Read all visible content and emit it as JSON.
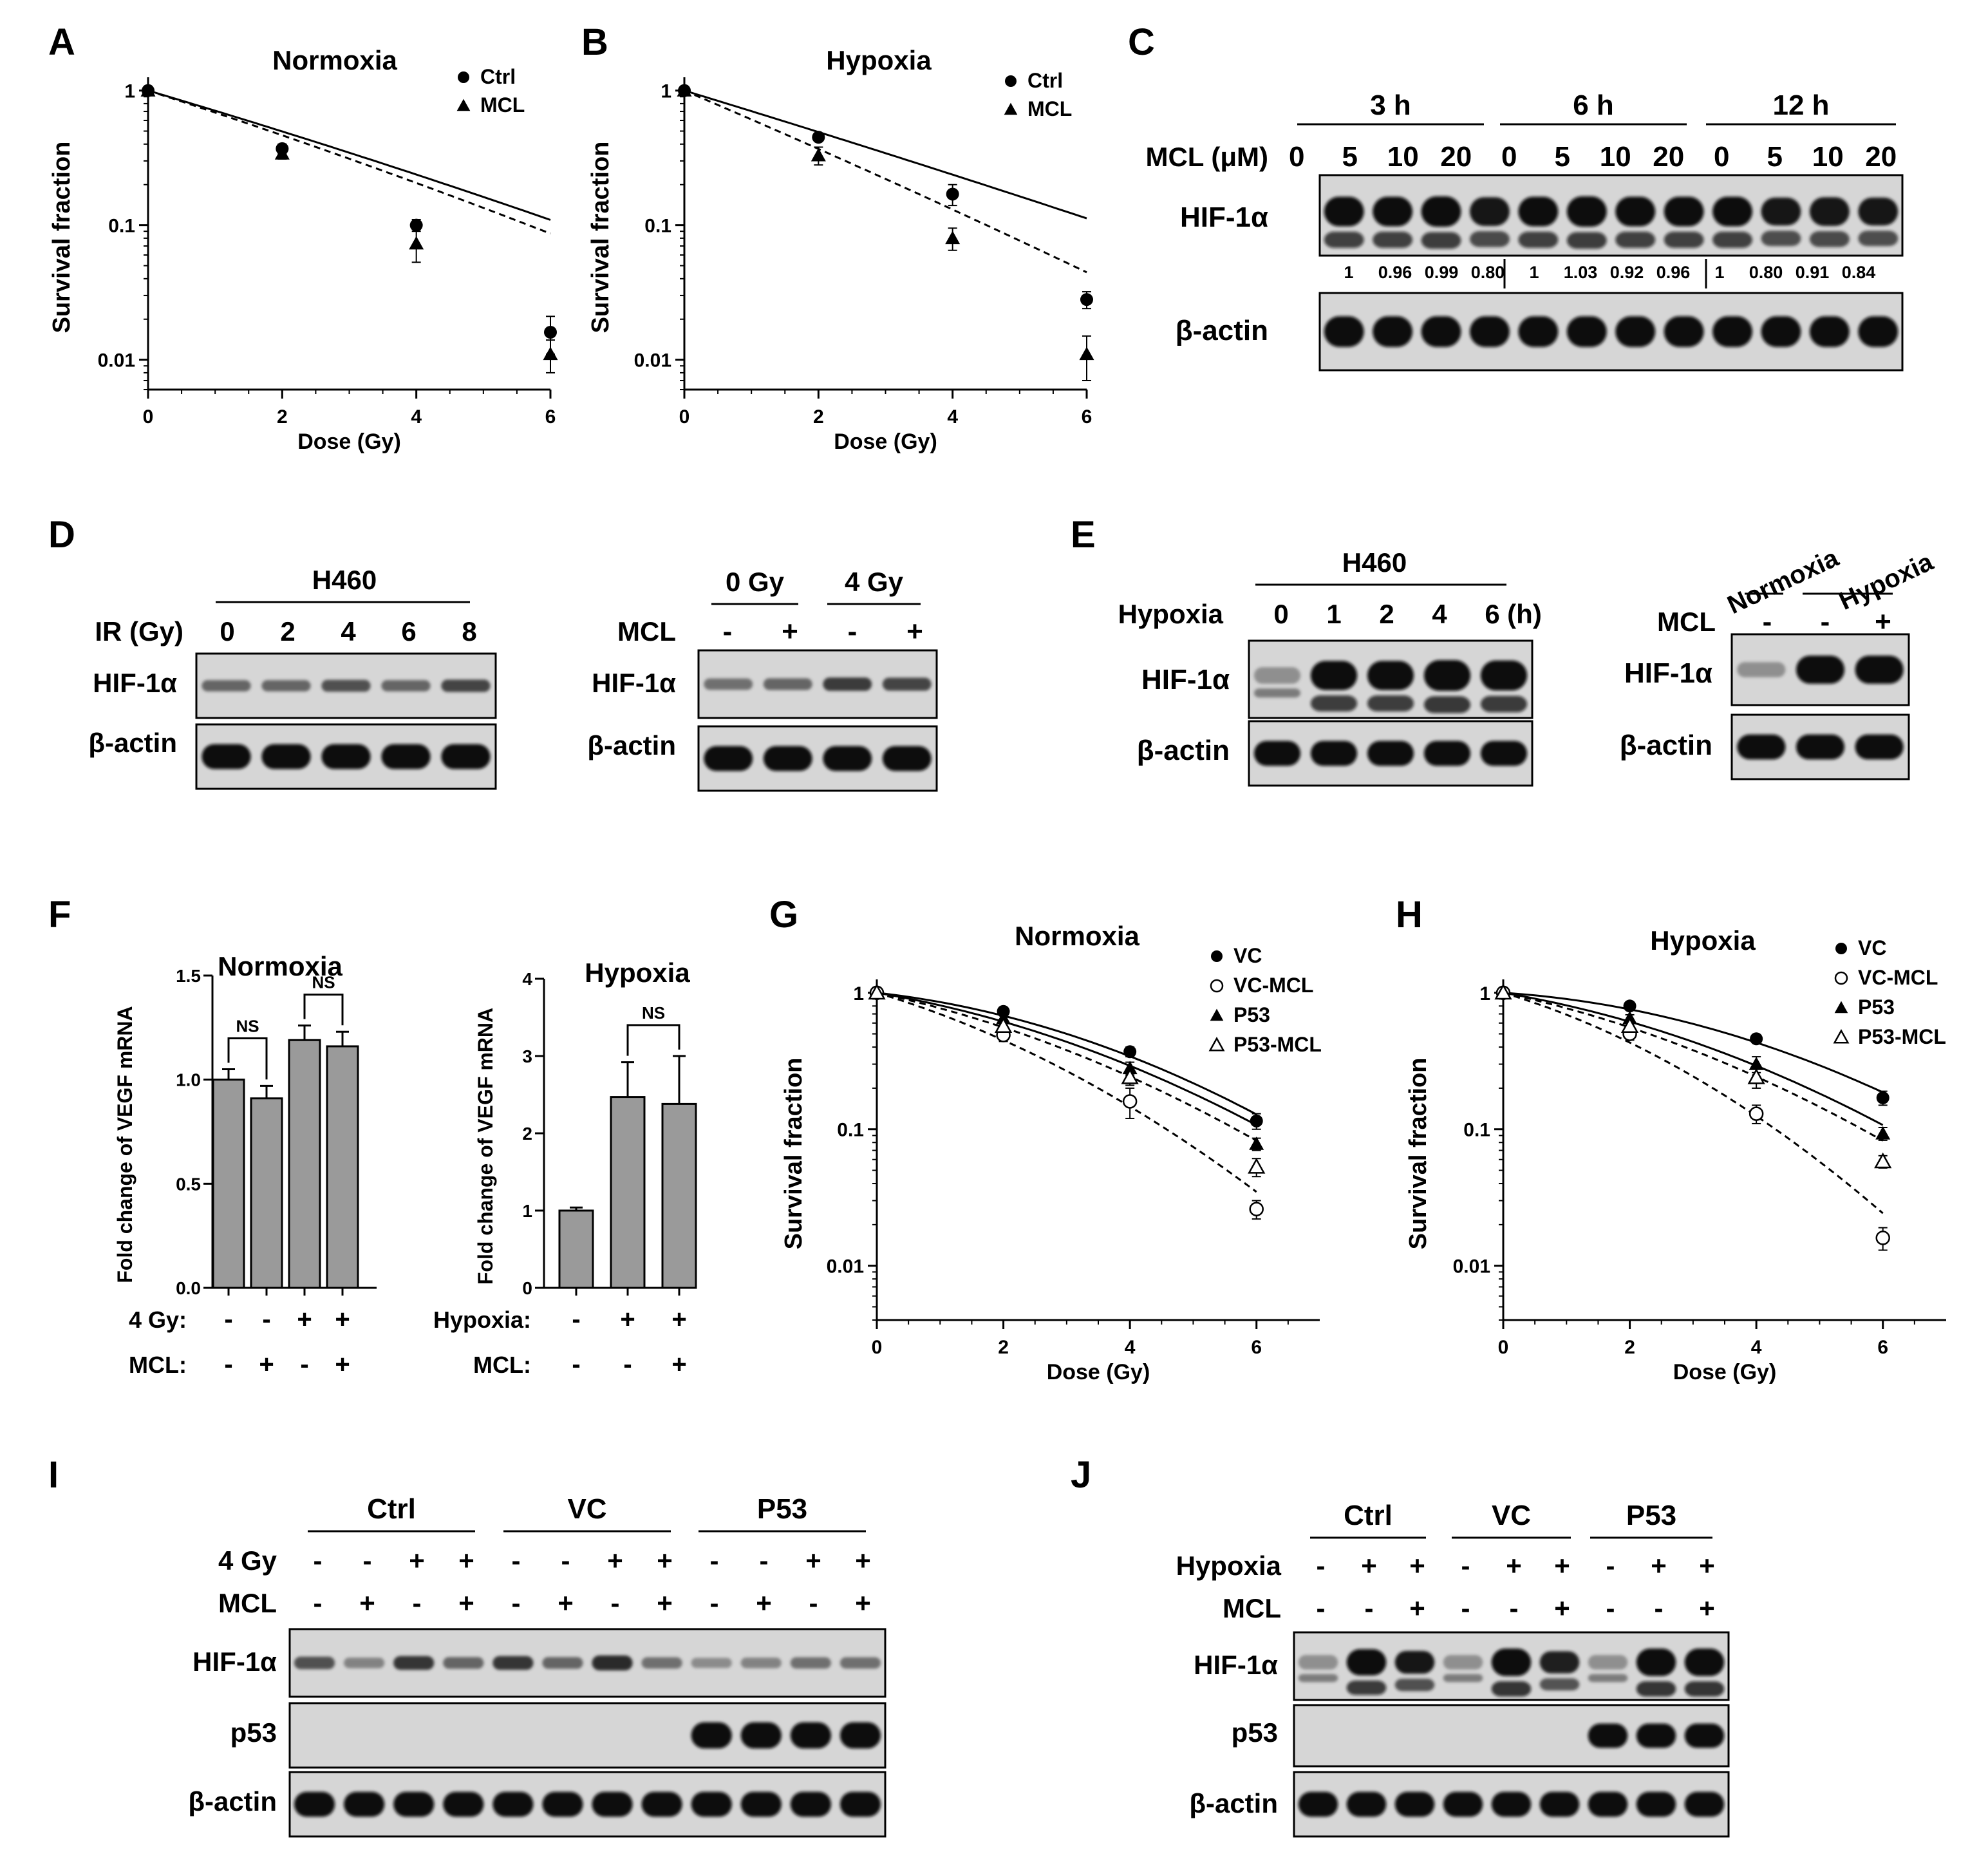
{
  "panel_letters": [
    "A",
    "B",
    "C",
    "D",
    "E",
    "F",
    "G",
    "H",
    "I",
    "J"
  ],
  "chart_data": [
    {
      "panel": "A",
      "type": "scatter",
      "title": "Normoxia",
      "xlabel": "Dose (Gy)",
      "ylabel": "Survival fraction",
      "xlim": [
        0,
        6
      ],
      "ylim": [
        0.006,
        1.1
      ],
      "yscale": "log",
      "xticks": [
        "0",
        "2",
        "4",
        "6"
      ],
      "yticks": [
        "1",
        "0.1",
        "0.01"
      ],
      "legend": "top-right",
      "series": [
        {
          "name": "Ctrl",
          "marker": "circle",
          "line": "solid",
          "x": [
            0,
            2,
            4,
            6
          ],
          "y": [
            1,
            0.37,
            0.1,
            0.016
          ],
          "err": [
            0,
            0.03,
            0.01,
            0.005
          ],
          "fit": [
            0.34,
            0.0048
          ]
        },
        {
          "name": "MCL",
          "marker": "triangle",
          "line": "dashed",
          "x": [
            0,
            2,
            4,
            6
          ],
          "y": [
            1,
            0.34,
            0.073,
            0.011
          ],
          "err": [
            0,
            0.03,
            0.02,
            0.003
          ],
          "fit": [
            0.37,
            0.0063
          ]
        }
      ]
    },
    {
      "panel": "B",
      "type": "scatter",
      "title": "Hypoxia",
      "xlabel": "Dose (Gy)",
      "ylabel": "Survival fraction",
      "xlim": [
        0,
        6
      ],
      "ylim": [
        0.006,
        1.1
      ],
      "yscale": "log",
      "xticks": [
        "0",
        "2",
        "4",
        "6"
      ],
      "yticks": [
        "1",
        "0.1",
        "0.01"
      ],
      "legend": "top-right",
      "series": [
        {
          "name": "Ctrl",
          "marker": "circle",
          "line": "solid",
          "x": [
            0,
            2,
            4,
            6
          ],
          "y": [
            1,
            0.45,
            0.17,
            0.028
          ],
          "err": [
            0,
            0.02,
            0.03,
            0.004
          ],
          "fit": [
            0.35,
            0.0024
          ]
        },
        {
          "name": "MCL",
          "marker": "triangle",
          "line": "dashed",
          "x": [
            0,
            2,
            4,
            6
          ],
          "y": [
            1,
            0.33,
            0.08,
            0.011
          ],
          "err": [
            0,
            0.05,
            0.015,
            0.004
          ],
          "fit": [
            0.49,
            0.0047
          ]
        }
      ]
    },
    {
      "panel": "F",
      "type": "bar",
      "title": "Normoxia",
      "ylabel": "Fold change of VEGF mRNA",
      "ylim": [
        0,
        1.5
      ],
      "yticks": [
        "0.0",
        "0.5",
        "1.0",
        "1.5"
      ],
      "row_labels": [
        "4 Gy:",
        "MCL:"
      ],
      "conditions": [
        [
          "-",
          "-",
          "+",
          "+"
        ],
        [
          "-",
          "+",
          "-",
          "+"
        ]
      ],
      "values": [
        1.0,
        0.91,
        1.19,
        1.16
      ],
      "err": [
        0.05,
        0.06,
        0.07,
        0.07
      ],
      "annotations": [
        {
          "text": "NS",
          "bars": [
            0,
            1
          ]
        },
        {
          "text": "NS",
          "bars": [
            2,
            3
          ]
        }
      ]
    },
    {
      "panel": "F",
      "type": "bar",
      "title": "Hypoxia",
      "ylabel": "Fold change of VEGF mRNA",
      "ylim": [
        0,
        4
      ],
      "yticks": [
        "0",
        "1",
        "2",
        "3",
        "4"
      ],
      "row_labels": [
        "Hypoxia:",
        "MCL:"
      ],
      "conditions": [
        [
          "-",
          "+",
          "+"
        ],
        [
          "-",
          "-",
          "+"
        ]
      ],
      "values": [
        1.0,
        2.47,
        2.38
      ],
      "err": [
        0.04,
        0.45,
        0.62
      ],
      "annotations": [
        {
          "text": "NS",
          "bars": [
            1,
            2
          ]
        }
      ]
    },
    {
      "panel": "G",
      "type": "scatter",
      "title": "Normoxia",
      "xlabel": "Dose (Gy)",
      "ylabel": "Survival fraction",
      "xlim": [
        0,
        7
      ],
      "ylim": [
        0.004,
        1.1
      ],
      "yscale": "log",
      "xticks": [
        "0",
        "2",
        "4",
        "6"
      ],
      "yticks": [
        "1",
        "0.1",
        "0.01"
      ],
      "legend": "top-right",
      "series": [
        {
          "name": "VC",
          "marker": "circle",
          "line": "solid",
          "x": [
            0,
            2,
            4,
            6
          ],
          "y": [
            1,
            0.73,
            0.37,
            0.115
          ],
          "err": [
            0,
            0.04,
            0.03,
            0.015
          ],
          "fit": [
            0.12,
            0.037
          ]
        },
        {
          "name": "VC-MCL",
          "marker": "circle-open",
          "line": "dashed",
          "x": [
            0,
            2,
            4,
            6
          ],
          "y": [
            1,
            0.49,
            0.16,
            0.026
          ],
          "err": [
            0,
            0.05,
            0.04,
            0.004
          ],
          "fit": [
            0.32,
            0.04
          ]
        },
        {
          "name": "P53",
          "marker": "triangle",
          "line": "solid",
          "x": [
            0,
            2,
            4,
            6
          ],
          "y": [
            1,
            0.65,
            0.28,
            0.078
          ],
          "err": [
            0,
            0.04,
            0.03,
            0.008
          ],
          "fit": [
            0.18,
            0.032
          ]
        },
        {
          "name": "P53-MCL",
          "marker": "triangle-open",
          "line": "dashed",
          "x": [
            0,
            2,
            4,
            6
          ],
          "y": [
            1,
            0.57,
            0.24,
            0.053
          ],
          "err": [
            0,
            0.04,
            0.03,
            0.008
          ],
          "fit": [
            0.23,
            0.031
          ]
        }
      ]
    },
    {
      "panel": "H",
      "type": "scatter",
      "title": "Hypoxia",
      "xlabel": "Dose (Gy)",
      "ylabel": "Survival fraction",
      "xlim": [
        0,
        7
      ],
      "ylim": [
        0.004,
        1.1
      ],
      "yscale": "log",
      "xticks": [
        "0",
        "2",
        "4",
        "6"
      ],
      "yticks": [
        "1",
        "0.1",
        "0.01"
      ],
      "legend": "top-right",
      "series": [
        {
          "name": "VC",
          "marker": "circle",
          "line": "solid",
          "x": [
            0,
            2,
            4,
            6
          ],
          "y": [
            1,
            0.8,
            0.46,
            0.17
          ],
          "err": [
            0,
            0.03,
            0.03,
            0.02
          ],
          "fit": [
            0.07,
            0.035
          ]
        },
        {
          "name": "VC-MCL",
          "marker": "circle-open",
          "line": "dashed",
          "x": [
            0,
            2,
            4,
            6
          ],
          "y": [
            1,
            0.5,
            0.13,
            0.016
          ],
          "err": [
            0,
            0.05,
            0.02,
            0.003
          ],
          "fit": [
            0.32,
            0.05
          ]
        },
        {
          "name": "P53",
          "marker": "triangle",
          "line": "solid",
          "x": [
            0,
            2,
            4,
            6
          ],
          "y": [
            1,
            0.65,
            0.3,
            0.093
          ],
          "err": [
            0,
            0.04,
            0.04,
            0.01
          ],
          "fit": [
            0.18,
            0.032
          ]
        },
        {
          "name": "P53-MCL",
          "marker": "triangle-open",
          "line": "dashed",
          "x": [
            0,
            2,
            4,
            6
          ],
          "y": [
            1,
            0.57,
            0.24,
            0.058
          ],
          "err": [
            0,
            0.04,
            0.04,
            0.006
          ],
          "fit": [
            0.23,
            0.031
          ]
        }
      ]
    }
  ],
  "blots": {
    "C": {
      "groups": [
        "3 h",
        "6 h",
        "12 h"
      ],
      "row_label": "MCL (μM)",
      "lanes": [
        "0",
        "5",
        "10",
        "20",
        "0",
        "5",
        "10",
        "20",
        "0",
        "5",
        "10",
        "20"
      ],
      "proteins": [
        "HIF-1α",
        "β-actin"
      ],
      "densitometry": [
        "1",
        "0.96",
        "0.99",
        "0.80",
        "1",
        "1.03",
        "0.92",
        "0.96",
        "1",
        "0.80",
        "0.91",
        "0.84"
      ]
    },
    "D_left": {
      "group": "H460",
      "row_label": "IR (Gy)",
      "lanes": [
        "0",
        "2",
        "4",
        "6",
        "8"
      ],
      "proteins": [
        "HIF-1α",
        "β-actin"
      ]
    },
    "D_right": {
      "groups": [
        "0 Gy",
        "4 Gy"
      ],
      "row_label": "MCL",
      "lanes": [
        "-",
        "+",
        "-",
        "+"
      ],
      "proteins": [
        "HIF-1α",
        "β-actin"
      ]
    },
    "E_left": {
      "group": "H460",
      "row_label": "Hypoxia",
      "lanes": [
        "0",
        "1",
        "2",
        "4",
        "6"
      ],
      "unit": "(h)",
      "proteins": [
        "HIF-1α",
        "β-actin"
      ]
    },
    "E_right": {
      "groups": [
        "Normoxia",
        "Hypoxia"
      ],
      "row_label": "MCL",
      "lanes": [
        "-",
        "-",
        "+"
      ],
      "proteins": [
        "HIF-1α",
        "β-actin"
      ]
    },
    "I": {
      "groups": [
        "Ctrl",
        "VC",
        "P53"
      ],
      "rows": [
        {
          "label": "4 Gy",
          "values": [
            "-",
            "-",
            "+",
            "+",
            "-",
            "-",
            "+",
            "+",
            "-",
            "-",
            "+",
            "+"
          ]
        },
        {
          "label": "MCL",
          "values": [
            "-",
            "+",
            "-",
            "+",
            "-",
            "+",
            "-",
            "+",
            "-",
            "+",
            "-",
            "+"
          ]
        }
      ],
      "proteins": [
        "HIF-1α",
        "p53",
        "β-actin"
      ]
    },
    "J": {
      "groups": [
        "Ctrl",
        "VC",
        "P53"
      ],
      "rows": [
        {
          "label": "Hypoxia",
          "values": [
            "-",
            "+",
            "+",
            "-",
            "+",
            "+",
            "-",
            "+",
            "+"
          ]
        },
        {
          "label": "MCL",
          "values": [
            "-",
            "-",
            "+",
            "-",
            "-",
            "+",
            "-",
            "-",
            "+"
          ]
        }
      ],
      "proteins": [
        "HIF-1α",
        "p53",
        "β-actin"
      ]
    }
  }
}
